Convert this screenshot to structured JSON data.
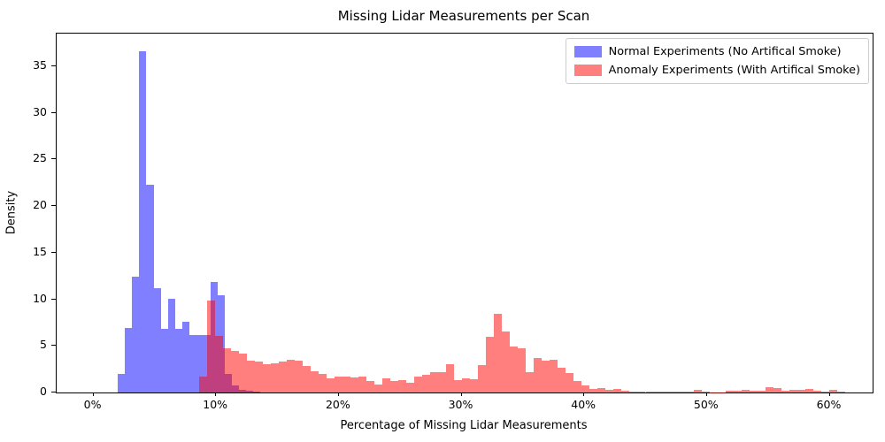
{
  "title": "Missing Lidar Measurements per Scan",
  "chart_data": {
    "type": "bar",
    "subtype": "overlaid-histogram",
    "title": "Missing Lidar Measurements per Scan",
    "xlabel": "Percentage of Missing Lidar Measurements",
    "ylabel": "Density",
    "xlim": [
      -3,
      63.5
    ],
    "ylim": [
      0,
      38.5
    ],
    "grid": false,
    "x_unit": "percent",
    "x_ticks": {
      "values": [
        0,
        10,
        20,
        30,
        40,
        50,
        60
      ],
      "labels": [
        "0%",
        "10%",
        "20%",
        "30%",
        "40%",
        "50%",
        "60%"
      ]
    },
    "y_ticks": {
      "values": [
        0,
        5,
        10,
        15,
        20,
        25,
        30,
        35
      ],
      "labels": [
        "0",
        "5",
        "10",
        "15",
        "20",
        "25",
        "30",
        "35"
      ]
    },
    "legend_position": "upper right",
    "overlap_blend_color": "#bf3f7f",
    "series": [
      {
        "name": "Normal Experiments (No Artifical Smoke)",
        "base_color": "#0000ff",
        "fill": "rgba(0,0,255,0.5)",
        "rendered_color": "#7f7fff",
        "bin_start_pct": 2.0,
        "bin_width_pct": 0.58,
        "densities": [
          2.0,
          6.9,
          12.4,
          36.6,
          22.3,
          11.2,
          6.8,
          10.1,
          6.8,
          7.6,
          6.2,
          6.2,
          6.2,
          11.9,
          10.4,
          2.0,
          0.75,
          0.3,
          0.15,
          0.1
        ]
      },
      {
        "name": "Anomaly Experiments (With Artifical Smoke)",
        "base_color": "#ff0000",
        "fill": "rgba(255,0,0,0.5)",
        "rendered_color": "#ff7f7f",
        "bin_start_pct": 8.6,
        "bin_width_pct": 0.65,
        "densities": [
          1.75,
          9.9,
          6.1,
          4.7,
          4.5,
          4.2,
          3.4,
          3.3,
          3.0,
          3.1,
          3.3,
          3.5,
          3.4,
          2.8,
          2.3,
          2.0,
          1.5,
          1.75,
          1.75,
          1.6,
          1.75,
          1.2,
          0.85,
          1.5,
          1.2,
          1.3,
          1.0,
          1.7,
          1.9,
          2.15,
          2.15,
          3.05,
          1.3,
          1.5,
          1.45,
          2.95,
          6.0,
          8.4,
          6.5,
          4.95,
          4.7,
          2.2,
          3.7,
          3.4,
          3.5,
          2.65,
          2.05,
          1.2,
          0.75,
          0.4,
          0.5,
          0.3,
          0.35,
          0.2,
          0.1,
          0.12,
          0.1,
          0.05,
          0.05,
          0.1,
          0.05,
          0.1,
          0.25,
          0.05,
          0.02,
          0.02,
          0.2,
          0.2,
          0.3,
          0.2,
          0.2,
          0.6,
          0.5,
          0.2,
          0.25,
          0.25,
          0.35,
          0.15,
          0.05,
          0.3,
          0.05
        ]
      }
    ]
  }
}
